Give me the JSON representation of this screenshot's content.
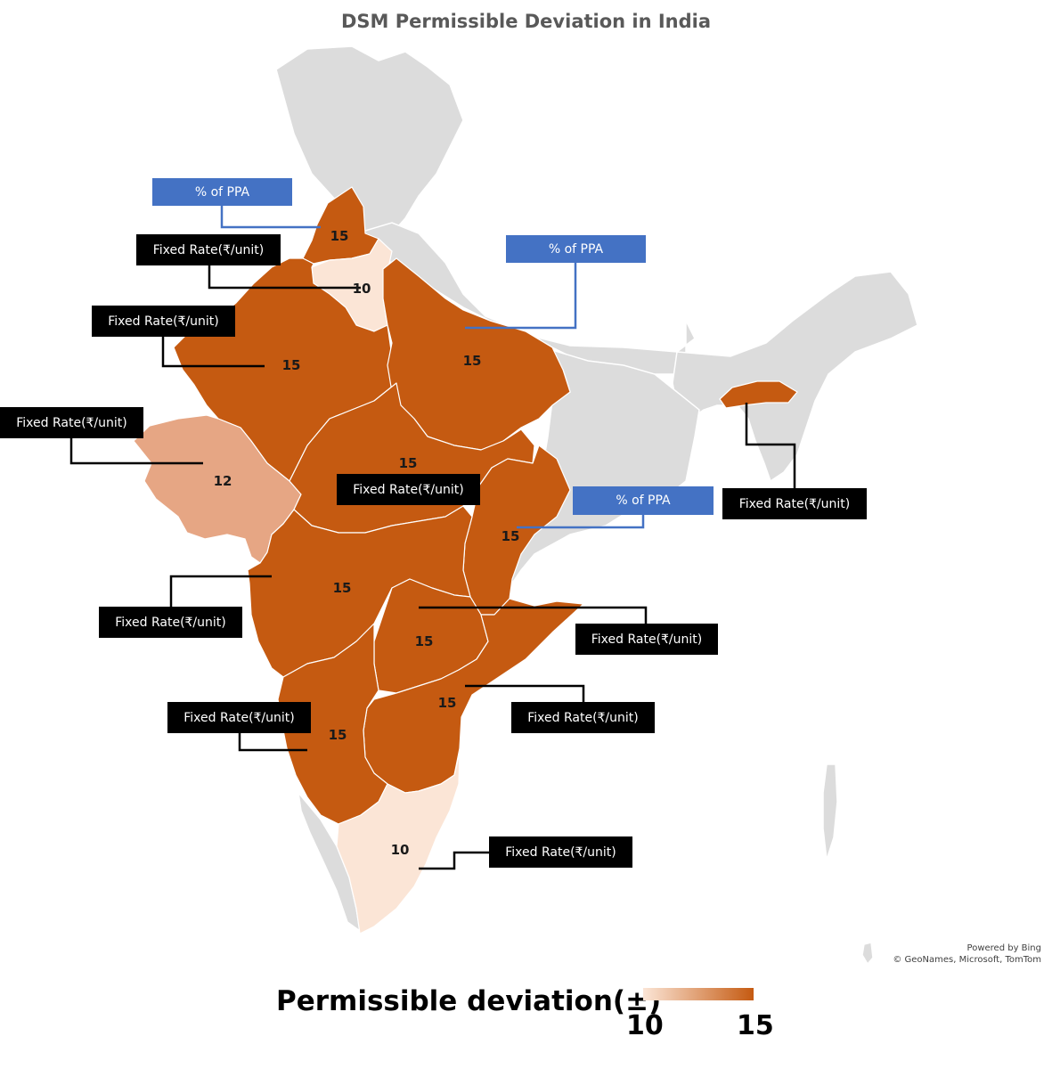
{
  "title": "DSM Permissible Deviation in India",
  "colors": {
    "base_land": "#dcdcdc",
    "high": "#c55a11",
    "mid": "#e6a684",
    "low": "#fbe5d6",
    "callout_black": "#000000",
    "callout_blue": "#4472c4"
  },
  "regions": [
    {
      "name": "Punjab",
      "value": 15,
      "label": "15",
      "method": "% of PPA"
    },
    {
      "name": "Haryana",
      "value": 10,
      "label": "10",
      "method": "Fixed Rate(₹/unit)"
    },
    {
      "name": "Rajasthan",
      "value": 15,
      "label": "15",
      "method": "Fixed Rate(₹/unit)"
    },
    {
      "name": "Uttar Pradesh",
      "value": 15,
      "label": "15",
      "method": "% of PPA"
    },
    {
      "name": "Gujarat",
      "value": 12,
      "label": "12",
      "method": "Fixed Rate(₹/unit)"
    },
    {
      "name": "Madhya Pradesh",
      "value": 15,
      "label": "15",
      "method": "Fixed Rate(₹/unit)"
    },
    {
      "name": "Odisha",
      "value": 15,
      "label": "15",
      "method": "% of PPA"
    },
    {
      "name": "Maharashtra",
      "value": 15,
      "label": "15",
      "method": "Fixed Rate(₹/unit)"
    },
    {
      "name": "Telangana",
      "value": 15,
      "label": "15",
      "method": "Fixed Rate(₹/unit)"
    },
    {
      "name": "Andhra Pradesh",
      "value": 15,
      "label": "15",
      "method": "Fixed Rate(₹/unit)"
    },
    {
      "name": "Karnataka",
      "value": 15,
      "label": "15",
      "method": "Fixed Rate(₹/unit)"
    },
    {
      "name": "Tamil Nadu",
      "value": 10,
      "label": "10",
      "method": "Fixed Rate(₹/unit)"
    },
    {
      "name": "Assam",
      "value": 15,
      "label": "",
      "method": "Fixed Rate(₹/unit)"
    }
  ],
  "credit": {
    "line1": "Powered by Bing",
    "line2": "© GeoNames, Microsoft, TomTom"
  },
  "legend": {
    "title": "Permissible deviation(±)",
    "min": "10",
    "max": "15"
  }
}
